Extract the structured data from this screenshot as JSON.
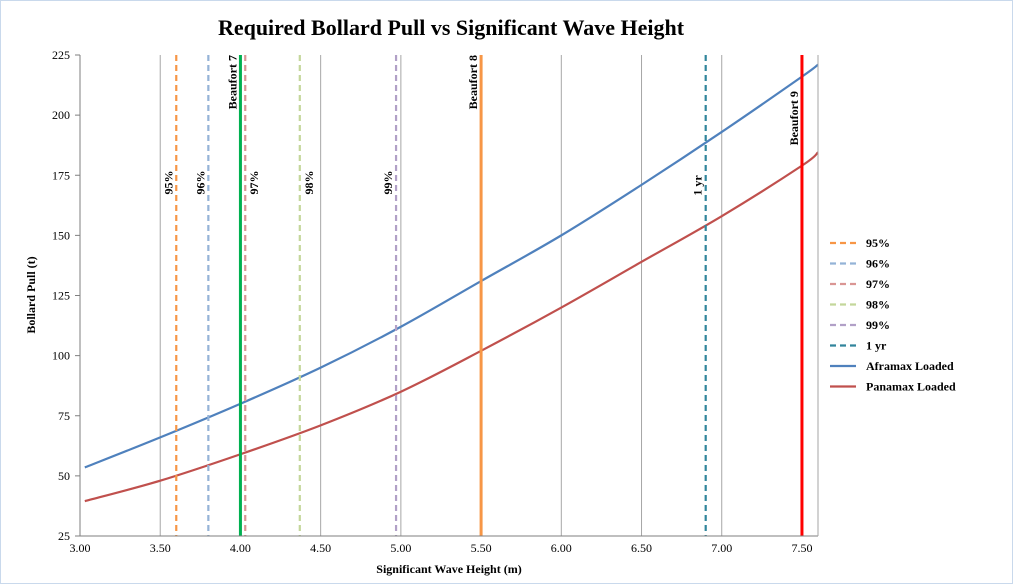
{
  "chart_data": {
    "type": "line",
    "title": "Required Bollard Pull vs Significant Wave Height",
    "xlabel": "Significant Wave Height (m)",
    "ylabel": "Bollard Pull (t)",
    "xlim": [
      3.0,
      7.6
    ],
    "ylim": [
      25,
      225
    ],
    "x_ticks": [
      "3.00",
      "3.50",
      "4.00",
      "4.50",
      "5.00",
      "5.50",
      "6.00",
      "6.50",
      "7.00",
      "7.50"
    ],
    "y_ticks": [
      "25",
      "50",
      "75",
      "100",
      "125",
      "150",
      "175",
      "200",
      "225"
    ],
    "grid": "vertical",
    "legend_position": "right",
    "series": [
      {
        "name": "Aframax Loaded",
        "color": "#4f81bd",
        "x": [
          3.03,
          3.5,
          4.0,
          4.5,
          5.0,
          5.5,
          6.0,
          6.5,
          7.0,
          7.5,
          7.6
        ],
        "y": [
          53.5,
          66,
          80,
          95,
          112,
          131,
          150,
          171,
          193,
          216,
          221
        ]
      },
      {
        "name": "Panamax Loaded",
        "color": "#c0504d",
        "x": [
          3.03,
          3.5,
          4.0,
          4.5,
          5.0,
          5.5,
          6.0,
          6.5,
          7.0,
          7.5,
          7.6
        ],
        "y": [
          39.5,
          48,
          59,
          71,
          85,
          102,
          120,
          139,
          158,
          179,
          184.5
        ]
      }
    ],
    "reference_lines": [
      {
        "name": "95%",
        "label": "95%",
        "x": 3.6,
        "color": "#f79646",
        "dashed": true,
        "in_legend": true,
        "label_y": 177,
        "label_side": "left"
      },
      {
        "name": "96%",
        "label": "96%",
        "x": 3.8,
        "color": "#95b3d7",
        "dashed": true,
        "in_legend": true,
        "label_y": 177,
        "label_side": "left"
      },
      {
        "name": "97%",
        "label": "97%",
        "x": 4.03,
        "color": "#da9694",
        "dashed": true,
        "in_legend": true,
        "label_y": 177,
        "label_side": "right"
      },
      {
        "name": "98%",
        "label": "98%",
        "x": 4.37,
        "color": "#c4d79b",
        "dashed": true,
        "in_legend": true,
        "label_y": 177,
        "label_side": "right"
      },
      {
        "name": "99%",
        "label": "99%",
        "x": 4.97,
        "color": "#b1a0c7",
        "dashed": true,
        "in_legend": true,
        "label_y": 177,
        "label_side": "left"
      },
      {
        "name": "1 yr",
        "label": "1 yr",
        "x": 6.9,
        "color": "#31859c",
        "dashed": true,
        "in_legend": true,
        "label_y": 175,
        "label_side": "left"
      },
      {
        "name": "Beaufort 7",
        "label": "Beaufort 7",
        "x": 4.0,
        "color": "#00b050",
        "dashed": false,
        "in_legend": false,
        "label_y": 225,
        "label_side": "left"
      },
      {
        "name": "Beaufort 8",
        "label": "Beaufort 8",
        "x": 5.5,
        "color": "#f79646",
        "dashed": false,
        "in_legend": false,
        "label_y": 225,
        "label_side": "left"
      },
      {
        "name": "Beaufort 9",
        "label": "Beaufort 9",
        "x": 7.5,
        "color": "#ff0000",
        "dashed": false,
        "in_legend": false,
        "label_y": 210,
        "label_side": "left"
      }
    ]
  }
}
